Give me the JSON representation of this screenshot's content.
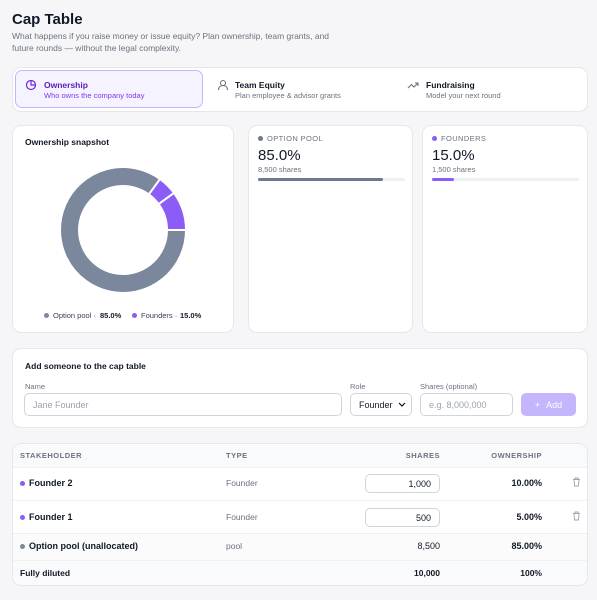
{
  "header": {
    "title": "Cap Table",
    "subtitle": "What happens if you raise money or issue equity? Plan ownership, team grants, and future rounds — without the legal complexity."
  },
  "tabs": [
    {
      "label": "Ownership",
      "sub": "Who owns the company today"
    },
    {
      "label": "Team Equity",
      "sub": "Plan employee & advisor grants"
    },
    {
      "label": "Fundraising",
      "sub": "Model your next round"
    }
  ],
  "snapshot": {
    "title": "Ownership snapshot",
    "legend": [
      {
        "label": "Option pool ·",
        "color": "#7a879c"
      },
      {
        "label": "Founders ·",
        "color": "#8b5cf6"
      }
    ]
  },
  "cards": [
    {
      "name": "OPTION POOL",
      "value": 85,
      "value_label": "85.0%",
      "shares": "8,500 shares",
      "color": "#6b7a93"
    },
    {
      "name": "FOUNDERS",
      "value": 15,
      "value_label": "15.0%",
      "shares": "1,500 shares",
      "color": "#8b5cf6"
    }
  ],
  "form": {
    "title": "Add someone to the cap table",
    "name_label": "Name",
    "name_placeholder": "Jane Founder",
    "role_label": "Role",
    "role_value": "Founder",
    "shares_label": "Shares (optional)",
    "shares_placeholder": "e.g. 8,000,000",
    "button": "Add"
  },
  "table": {
    "headers": [
      "STAKEHOLDER",
      "TYPE",
      "SHARES",
      "OWNERSHIP"
    ],
    "rows": [
      {
        "name": "Founder 2",
        "type": "Founder",
        "shares": "1,000",
        "ownership": {
          "value": 10,
          "label": "10.00%"
        },
        "color": "#8b5cf6"
      },
      {
        "name": "Founder 1",
        "type": "Founder",
        "shares": "500",
        "ownership": {
          "value": 5,
          "label": "5.00%"
        },
        "color": "#8b5cf6"
      },
      {
        "name": "Option pool (unallocated)",
        "type": "pool",
        "shares": "8,500",
        "ownership": {
          "value": 85,
          "label": "85.00%"
        },
        "color": "#7a879c"
      }
    ],
    "footer": {
      "name": "Fully diluted",
      "shares": "10,000",
      "ownership": "100%"
    }
  }
}
